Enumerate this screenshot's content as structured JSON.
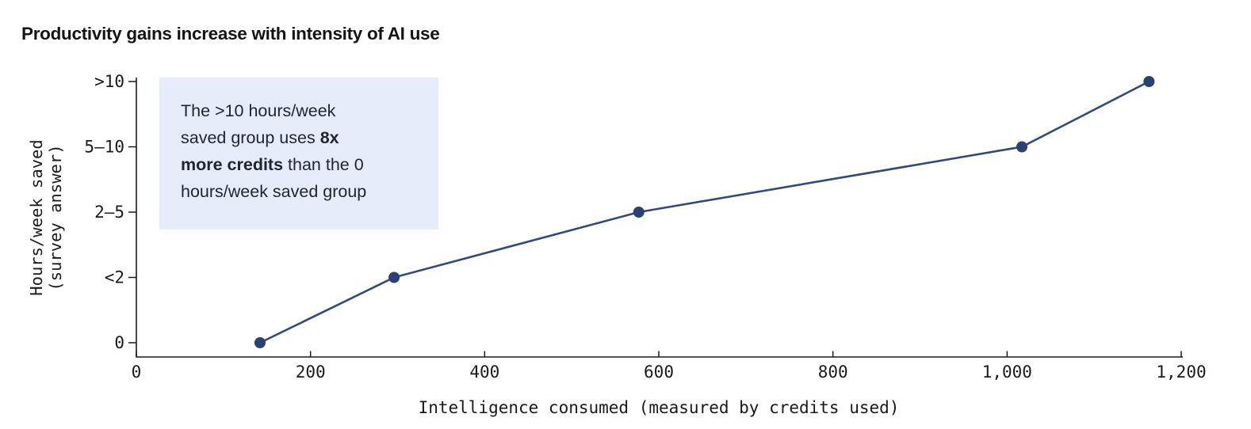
{
  "chart_data": {
    "type": "line",
    "title": "Productivity gains increase with intensity of AI use",
    "xlabel": "Intelligence consumed (measured by credits used)",
    "ylabel_line1": "Hours/week saved",
    "ylabel_line2": "(survey answer)",
    "x": [
      142,
      296,
      577,
      1017,
      1163
    ],
    "y_categories": [
      "0",
      "<2",
      "2–5",
      "5–10",
      ">10"
    ],
    "y_category_index": [
      0,
      1,
      2,
      3,
      4
    ],
    "xlim": [
      0,
      1200
    ],
    "x_ticks": [
      {
        "value": 0,
        "label": "0"
      },
      {
        "value": 200,
        "label": "200"
      },
      {
        "value": 400,
        "label": "400"
      },
      {
        "value": 600,
        "label": "600"
      },
      {
        "value": 800,
        "label": "800"
      },
      {
        "value": 1000,
        "label": "1,000"
      },
      {
        "value": 1200,
        "label": "1,200"
      }
    ],
    "grid": false,
    "legend": "none",
    "line_color": "#31497e",
    "dot_color": "#2b4173",
    "axis_color": "#1a1a1a",
    "annotation": {
      "background": "#e6ecfa",
      "lines": [
        [
          {
            "text": "The >10 hours/week",
            "bold": false
          }
        ],
        [
          {
            "text": "saved group uses ",
            "bold": false
          },
          {
            "text": "8x",
            "bold": true
          }
        ],
        [
          {
            "text": "more credits",
            "bold": true
          },
          {
            "text": " than the 0",
            "bold": false
          }
        ],
        [
          {
            "text": "hours/week saved group",
            "bold": false
          }
        ]
      ]
    }
  }
}
